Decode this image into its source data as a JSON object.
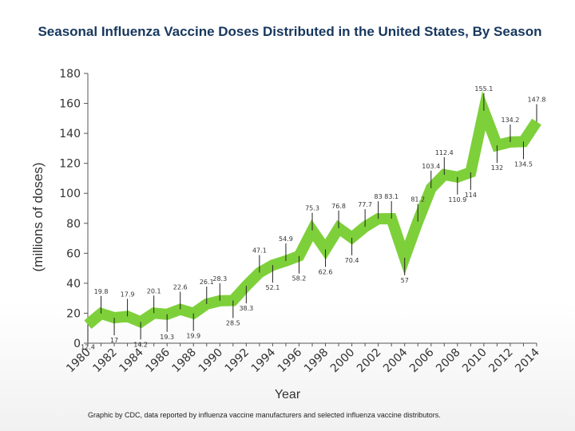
{
  "chart_data": {
    "type": "line",
    "title": "Seasonal Influenza Vaccine Doses Distributed in the United States, By Season",
    "xlabel": "Year",
    "ylabel": "(millions of doses)",
    "footnote": "Graphic by CDC, data reported by influenza vaccine manufacturers and selected influenza vaccine distributors.",
    "ylim": [
      0,
      180
    ],
    "yticks": [
      0,
      20,
      40,
      60,
      80,
      100,
      120,
      140,
      160,
      180
    ],
    "xlim": [
      1980,
      2014
    ],
    "xticks": [
      "1980",
      "1982",
      "1984",
      "1986",
      "1988",
      "1990",
      "1992",
      "1994",
      "1996",
      "1998",
      "2000",
      "2002",
      "2004",
      "2006",
      "2008",
      "2010",
      "2012",
      "2014"
    ],
    "grid": false,
    "line_color": "#7ed03a",
    "series": [
      {
        "name": "Doses distributed",
        "x": [
          1980,
          1981,
          1982,
          1983,
          1984,
          1985,
          1986,
          1987,
          1988,
          1989,
          1990,
          1991,
          1992,
          1993,
          1994,
          1995,
          1996,
          1997,
          1998,
          1999,
          2000,
          2001,
          2002,
          2003,
          2004,
          2005,
          2006,
          2007,
          2008,
          2009,
          2010,
          2011,
          2012,
          2013,
          2014
        ],
        "values": [
          12.4,
          19.8,
          17,
          17.9,
          14.2,
          20.1,
          19.3,
          22.6,
          19.9,
          26.1,
          28.3,
          28.5,
          38.3,
          47.1,
          52.1,
          54.9,
          58.2,
          75.3,
          62.6,
          76.8,
          70.4,
          77.7,
          83,
          83.1,
          57,
          81.2,
          103.4,
          112.4,
          110.9,
          114,
          155.1,
          132,
          134.2,
          134.5,
          147.8
        ],
        "labels": [
          "12.4",
          "19.8",
          "17",
          "17.9",
          "14.2",
          "20.1",
          "19.3",
          "22.6",
          "19.9",
          "26.1",
          "28.3",
          "28.5",
          "38.3",
          "47.1",
          "52.1",
          "54.9",
          "58.2",
          "75.3",
          "62.6",
          "76.8",
          "70.4",
          "77.7",
          "83",
          "83.1",
          "57",
          "81.2",
          "103.4",
          "112.4",
          "110.9",
          "114",
          "155.1",
          "132",
          "134.2",
          "134.5",
          "147.8"
        ],
        "label_side": [
          "below",
          "above",
          "below",
          "above",
          "below",
          "above",
          "below",
          "above",
          "below",
          "above",
          "above",
          "below",
          "below",
          "above",
          "below",
          "above",
          "below",
          "above",
          "below",
          "above",
          "below",
          "above",
          "above",
          "above",
          "below",
          "above",
          "above",
          "above",
          "below",
          "below",
          "above",
          "below",
          "above",
          "below",
          "above"
        ]
      }
    ]
  }
}
